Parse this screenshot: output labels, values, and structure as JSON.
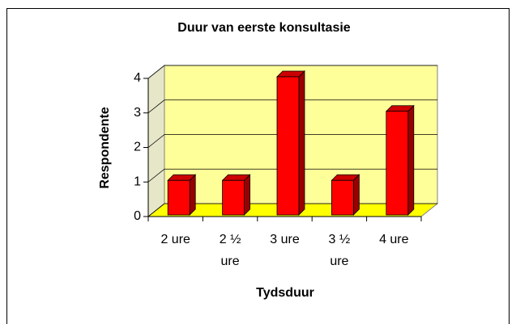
{
  "chart_data": {
    "type": "bar",
    "title": "Duur van eerste konsultasie",
    "categories": [
      "2 ure",
      "2 ½ ure",
      "3 ure",
      "3 ½ ure",
      "4 ure"
    ],
    "values": [
      1,
      1,
      4,
      1,
      3
    ],
    "color": "#ff0000",
    "ylim": [
      0,
      4
    ],
    "yticks": [
      0,
      1,
      2,
      3,
      4
    ],
    "grid": true,
    "x_label": "Tydsduur",
    "y_label": "Respondente"
  }
}
